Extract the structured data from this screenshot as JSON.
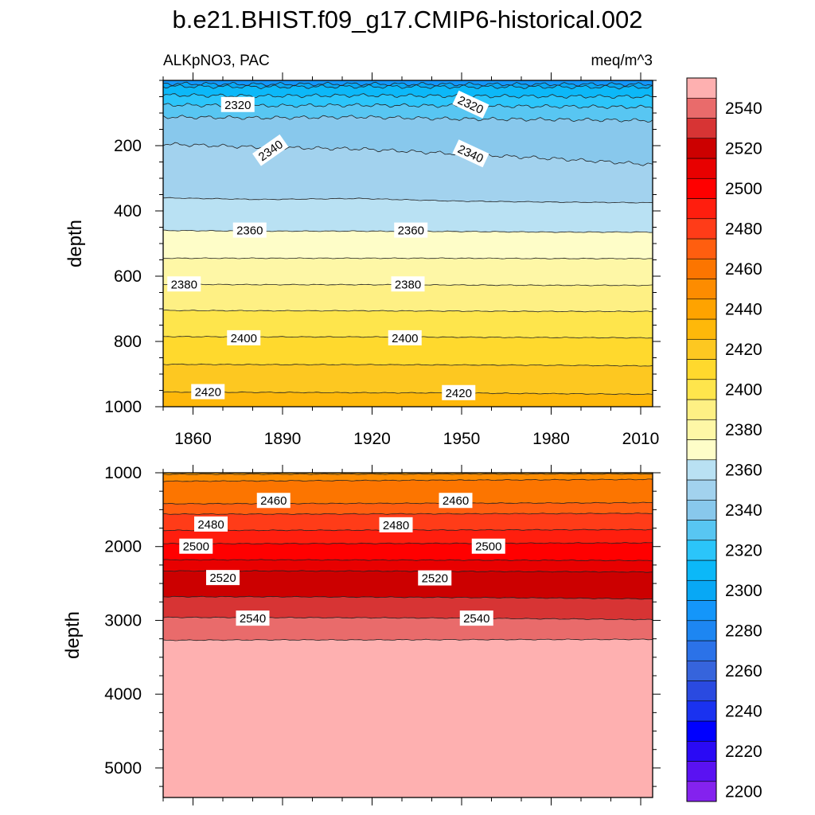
{
  "chart_data": {
    "type": "heatmap",
    "title": "b.e21.BHIST.f09_g17.CMIP6-historical.002",
    "variable": "ALKpNO3, PAC",
    "units": "meq/m^3",
    "colorbar": {
      "levels": [
        2200,
        2210,
        2220,
        2230,
        2240,
        2250,
        2260,
        2270,
        2280,
        2290,
        2300,
        2310,
        2320,
        2330,
        2340,
        2350,
        2360,
        2370,
        2380,
        2390,
        2400,
        2410,
        2420,
        2430,
        2440,
        2450,
        2460,
        2470,
        2480,
        2490,
        2500,
        2510,
        2520,
        2530,
        2540,
        2550
      ],
      "tick_labels": [
        "2200",
        "2220",
        "2240",
        "2260",
        "2280",
        "2300",
        "2320",
        "2340",
        "2360",
        "2380",
        "2400",
        "2420",
        "2440",
        "2460",
        "2480",
        "2500",
        "2520",
        "2540"
      ],
      "colors": [
        "#8422ee",
        "#5a12f2",
        "#2a0af5",
        "#0000ff",
        "#1a32f0",
        "#2a4ae0",
        "#3664dc",
        "#2b72e8",
        "#1d86f2",
        "#1496fa",
        "#08a8f5",
        "#0cb8f8",
        "#2bc5fa",
        "#58c6f2",
        "#88c8ec",
        "#a2d2ee",
        "#b9e1f3",
        "#fefdc8",
        "#fef7a6",
        "#fef084",
        "#fee54c",
        "#ffd92d",
        "#fdc821",
        "#feb80a",
        "#fea300",
        "#fd8c00",
        "#fc7500",
        "#ff5e0f",
        "#ff3c18",
        "#ff1e0e",
        "#ff0000",
        "#e80000",
        "#cc0000",
        "#d73434",
        "#e96b6b",
        "#feb0b0"
      ]
    },
    "panels": [
      {
        "xlim": [
          1850,
          2014
        ],
        "ylim": [
          0,
          1000
        ],
        "y_reversed": true,
        "xticks": [
          1860,
          1890,
          1920,
          1950,
          1980,
          2010
        ],
        "yticks": [
          200,
          400,
          600,
          800,
          1000
        ],
        "ylabel": "depth",
        "boundaries": [
          {
            "level": 2290,
            "depths": [
              10,
              12,
              11,
              12,
              12,
              12
            ]
          },
          {
            "level": 2300,
            "depths": [
              18,
              20,
              19,
              20,
              20,
              21
            ]
          },
          {
            "level": 2310,
            "depths": [
              45,
              48,
              46,
              48,
              49,
              50
            ]
          },
          {
            "level": 2320,
            "depths": [
              75,
              78,
              76,
              78,
              80,
              82
            ]
          },
          {
            "level": 2330,
            "depths": [
              112,
              115,
              112,
              118,
              120,
              123
            ]
          },
          {
            "level": 2340,
            "depths": [
              195,
              205,
              210,
              225,
              240,
              258
            ]
          },
          {
            "level": 2350,
            "depths": [
              360,
              365,
              362,
              370,
              373,
              375
            ]
          },
          {
            "level": 2360,
            "depths": [
              460,
              462,
              462,
              463,
              465,
              465
            ]
          },
          {
            "level": 2370,
            "depths": [
              545,
              545,
              545,
              545,
              546,
              546
            ]
          },
          {
            "level": 2380,
            "depths": [
              625,
              626,
              626,
              627,
              628,
              628
            ]
          },
          {
            "level": 2390,
            "depths": [
              705,
              706,
              706,
              707,
              708,
              708
            ]
          },
          {
            "level": 2400,
            "depths": [
              785,
              786,
              786,
              787,
              788,
              789
            ]
          },
          {
            "level": 2410,
            "depths": [
              870,
              871,
              871,
              872,
              873,
              875
            ]
          },
          {
            "level": 2420,
            "depths": [
              955,
              956,
              957,
              958,
              960,
              962
            ]
          }
        ],
        "contour_labels": [
          {
            "text": "2320",
            "x": 1875,
            "depth": 75,
            "angle": 0
          },
          {
            "text": "2320",
            "x": 1953,
            "depth": 75,
            "angle": 25
          },
          {
            "text": "2340",
            "x": 1886,
            "depth": 215,
            "angle": -35
          },
          {
            "text": "2340",
            "x": 1953,
            "depth": 225,
            "angle": 25
          },
          {
            "text": "2360",
            "x": 1879,
            "depth": 460,
            "angle": 0
          },
          {
            "text": "2360",
            "x": 1933,
            "depth": 460,
            "angle": 0
          },
          {
            "text": "2380",
            "x": 1857,
            "depth": 625,
            "angle": 0
          },
          {
            "text": "2380",
            "x": 1932,
            "depth": 625,
            "angle": 0
          },
          {
            "text": "2400",
            "x": 1877,
            "depth": 790,
            "angle": 0
          },
          {
            "text": "2400",
            "x": 1931,
            "depth": 790,
            "angle": 0
          },
          {
            "text": "2420",
            "x": 1865,
            "depth": 955,
            "angle": 0
          },
          {
            "text": "2420",
            "x": 1949,
            "depth": 958,
            "angle": 0
          }
        ]
      },
      {
        "xlim": [
          1850,
          2014
        ],
        "ylim": [
          1000,
          5400
        ],
        "y_reversed": true,
        "xticks": [
          1860,
          1890,
          1920,
          1950,
          1980,
          2010
        ],
        "yticks": [
          1000,
          2000,
          3000,
          4000,
          5000
        ],
        "ylabel": "depth",
        "boundaries": [
          {
            "level": 2440,
            "depths": [
              1020,
              1019,
              1018,
              1017,
              1016,
              1015
            ]
          },
          {
            "level": 2450,
            "depths": [
              1115,
              1110,
              1105,
              1100,
              1095,
              1090
            ]
          },
          {
            "level": 2460,
            "depths": [
              1420,
              1418,
              1415,
              1413,
              1410,
              1405
            ]
          },
          {
            "level": 2470,
            "depths": [
              1560,
              1560,
              1558,
              1556,
              1553,
              1550
            ]
          },
          {
            "level": 2480,
            "depths": [
              1780,
              1780,
              1778,
              1776,
              1773,
              1770
            ]
          },
          {
            "level": 2490,
            "depths": [
              1960,
              1960,
              1958,
              1956,
              1953,
              1950
            ]
          },
          {
            "level": 2500,
            "depths": [
              2180,
              2180,
              2182,
              2184,
              2186,
              2190
            ]
          },
          {
            "level": 2510,
            "depths": [
              2330,
              2330,
              2332,
              2336,
              2340,
              2345
            ]
          },
          {
            "level": 2520,
            "depths": [
              2680,
              2680,
              2684,
              2690,
              2698,
              2710
            ]
          },
          {
            "level": 2530,
            "depths": [
              2960,
              2962,
              2965,
              2970,
              2980,
              2990
            ]
          },
          {
            "level": 2540,
            "depths": [
              3270,
              3265,
              3265,
              3262,
              3260,
              3258
            ]
          }
        ],
        "contour_labels": [
          {
            "text": "2460",
            "x": 1887,
            "depth": 1380,
            "angle": 0
          },
          {
            "text": "2460",
            "x": 1948,
            "depth": 1380,
            "angle": 0
          },
          {
            "text": "2480",
            "x": 1866,
            "depth": 1700,
            "angle": 0
          },
          {
            "text": "2480",
            "x": 1928,
            "depth": 1710,
            "angle": 0
          },
          {
            "text": "2500",
            "x": 1861,
            "depth": 2000,
            "angle": 0
          },
          {
            "text": "2500",
            "x": 1959,
            "depth": 2000,
            "angle": 0
          },
          {
            "text": "2520",
            "x": 1870,
            "depth": 2425,
            "angle": 0
          },
          {
            "text": "2520",
            "x": 1941,
            "depth": 2430,
            "angle": 0
          },
          {
            "text": "2540",
            "x": 1880,
            "depth": 2975,
            "angle": 0
          },
          {
            "text": "2540",
            "x": 1955,
            "depth": 2975,
            "angle": 0
          }
        ]
      }
    ]
  }
}
